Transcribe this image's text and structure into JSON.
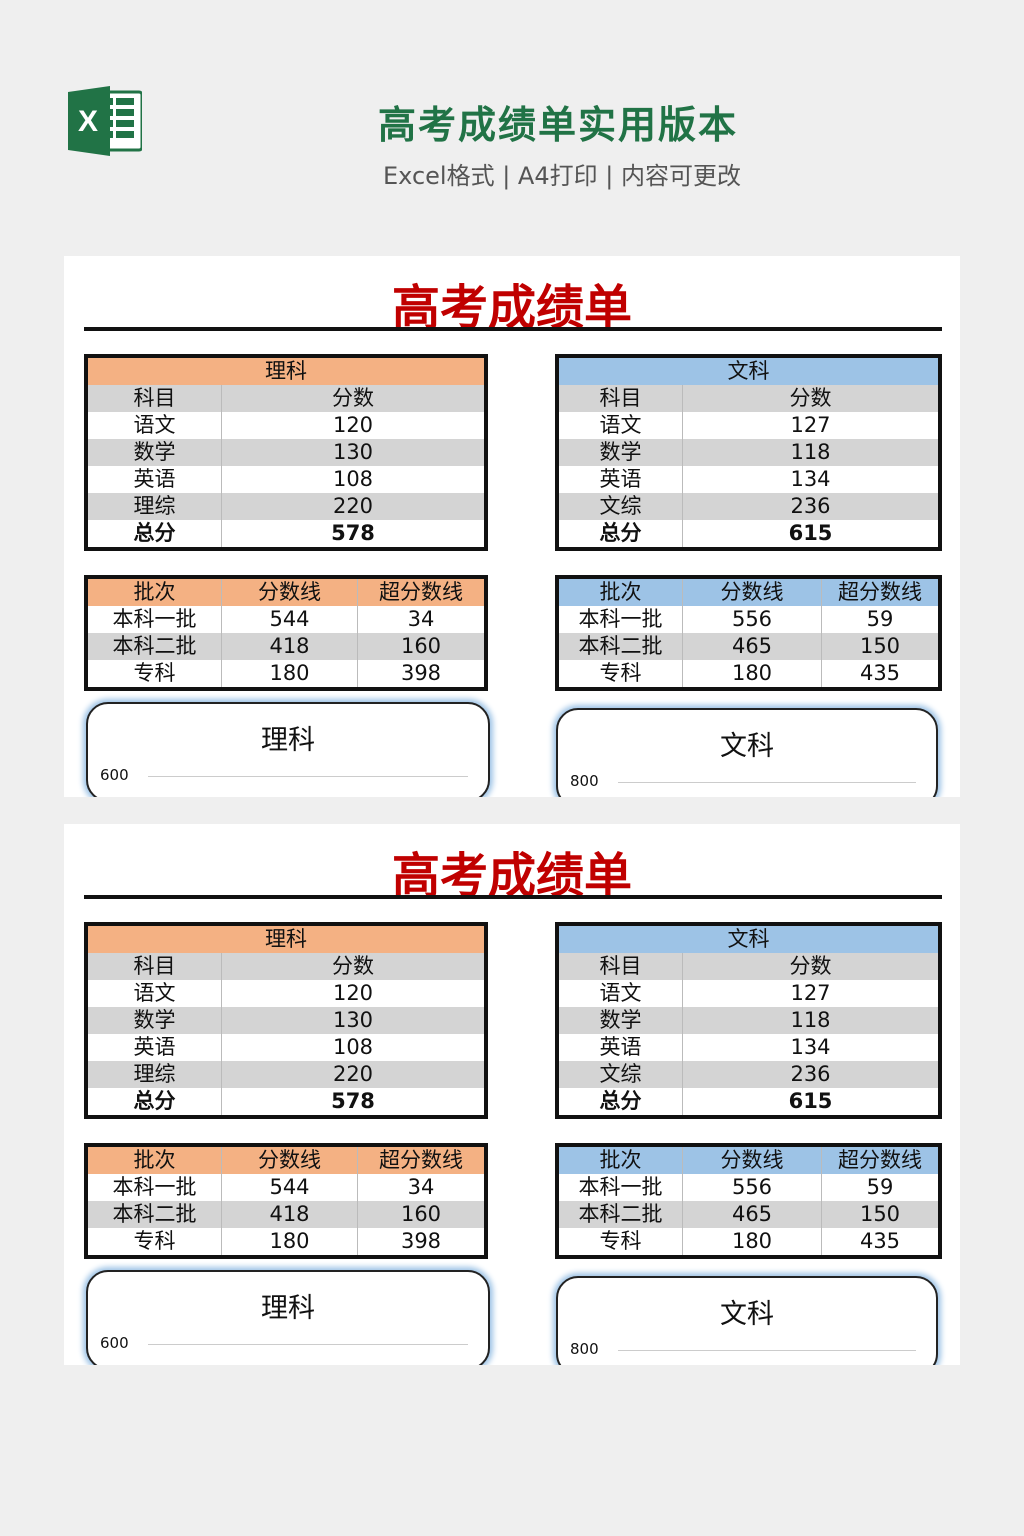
{
  "header": {
    "title": "高考成绩单实用版本",
    "subtitle": "Excel格式 | A4打印 | 内容可更改",
    "logo_icon": "excel-icon",
    "brand_color": "#217346"
  },
  "colors": {
    "title": "#c00000",
    "science": "#f4b183",
    "arts": "#9dc3e6",
    "stripe": "#d4d4d4"
  },
  "sheets": [
    {
      "title": "高考成绩单",
      "science": {
        "label": "理科",
        "headers": [
          "科目",
          "分数"
        ],
        "rows": [
          [
            "语文",
            "120"
          ],
          [
            "数学",
            "130"
          ],
          [
            "英语",
            "108"
          ],
          [
            "理综",
            "220"
          ]
        ],
        "total": [
          "总分",
          "578"
        ],
        "batch_headers": [
          "批次",
          "分数线",
          "超分数线"
        ],
        "batch": [
          [
            "本科一批",
            "544",
            "34"
          ],
          [
            "本科二批",
            "418",
            "160"
          ],
          [
            "专科",
            "180",
            "398"
          ]
        ],
        "chart_title": "理科",
        "chart_ytick": "600"
      },
      "arts": {
        "label": "文科",
        "headers": [
          "科目",
          "分数"
        ],
        "rows": [
          [
            "语文",
            "127"
          ],
          [
            "数学",
            "118"
          ],
          [
            "英语",
            "134"
          ],
          [
            "文综",
            "236"
          ]
        ],
        "total": [
          "总分",
          "615"
        ],
        "batch_headers": [
          "批次",
          "分数线",
          "超分数线"
        ],
        "batch": [
          [
            "本科一批",
            "556",
            "59"
          ],
          [
            "本科二批",
            "465",
            "150"
          ],
          [
            "专科",
            "180",
            "435"
          ]
        ],
        "chart_title": "文科",
        "chart_ytick": "800"
      }
    },
    {
      "title": "高考成绩单",
      "science": {
        "label": "理科",
        "headers": [
          "科目",
          "分数"
        ],
        "rows": [
          [
            "语文",
            "120"
          ],
          [
            "数学",
            "130"
          ],
          [
            "英语",
            "108"
          ],
          [
            "理综",
            "220"
          ]
        ],
        "total": [
          "总分",
          "578"
        ],
        "batch_headers": [
          "批次",
          "分数线",
          "超分数线"
        ],
        "batch": [
          [
            "本科一批",
            "544",
            "34"
          ],
          [
            "本科二批",
            "418",
            "160"
          ],
          [
            "专科",
            "180",
            "398"
          ]
        ],
        "chart_title": "理科",
        "chart_ytick": "600"
      },
      "arts": {
        "label": "文科",
        "headers": [
          "科目",
          "分数"
        ],
        "rows": [
          [
            "语文",
            "127"
          ],
          [
            "数学",
            "118"
          ],
          [
            "英语",
            "134"
          ],
          [
            "文综",
            "236"
          ]
        ],
        "total": [
          "总分",
          "615"
        ],
        "batch_headers": [
          "批次",
          "分数线",
          "超分数线"
        ],
        "batch": [
          [
            "本科一批",
            "556",
            "59"
          ],
          [
            "本科二批",
            "465",
            "150"
          ],
          [
            "专科",
            "180",
            "435"
          ]
        ],
        "chart_title": "文科",
        "chart_ytick": "800"
      }
    }
  ]
}
